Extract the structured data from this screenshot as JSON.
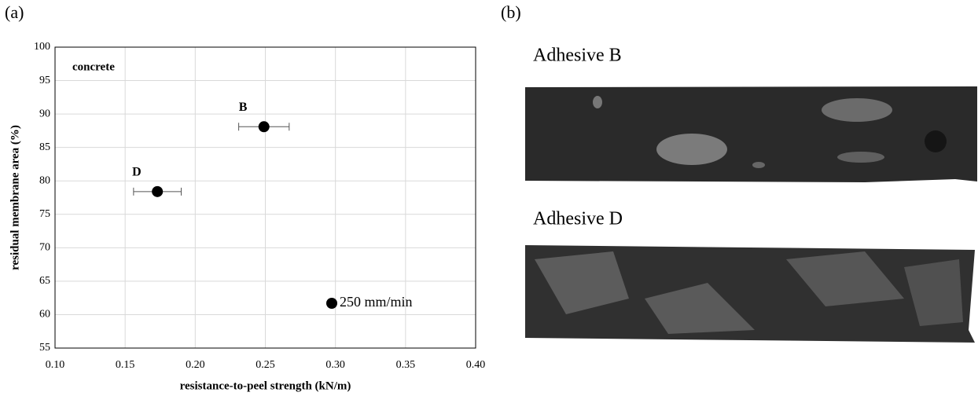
{
  "panel_labels": [
    "(a)",
    "(b)"
  ],
  "images": [
    {
      "caption": "Adhesive B"
    },
    {
      "caption": "Adhesive D"
    }
  ],
  "chart_data": {
    "type": "scatter",
    "annotation": "concrete",
    "xlabel": "resistance-to-peel strength (kN/m)",
    "ylabel": "residual membrane area (%)",
    "series": [
      {
        "name": "250 mm/min",
        "color": "#000000",
        "x": [
          0.249,
          0.173
        ],
        "values": [
          88.1,
          78.4
        ],
        "x_error": [
          0.018,
          0.017
        ],
        "point_labels": [
          "B",
          "D"
        ]
      }
    ],
    "xlim": [
      0.1,
      0.4
    ],
    "xticks": [
      {
        "value": 0.1,
        "label": "0.10"
      },
      {
        "value": 0.15,
        "label": "0.15"
      },
      {
        "value": 0.2,
        "label": "0.20"
      },
      {
        "value": 0.25,
        "label": "0.25"
      },
      {
        "value": 0.3,
        "label": "0.30"
      },
      {
        "value": 0.35,
        "label": "0.35"
      },
      {
        "value": 0.4,
        "label": "0.40"
      }
    ],
    "ylim": [
      55,
      100
    ],
    "yticks": [
      55,
      60,
      65,
      70,
      75,
      80,
      85,
      90,
      95,
      100
    ],
    "grid": true,
    "legend": "lower right"
  }
}
